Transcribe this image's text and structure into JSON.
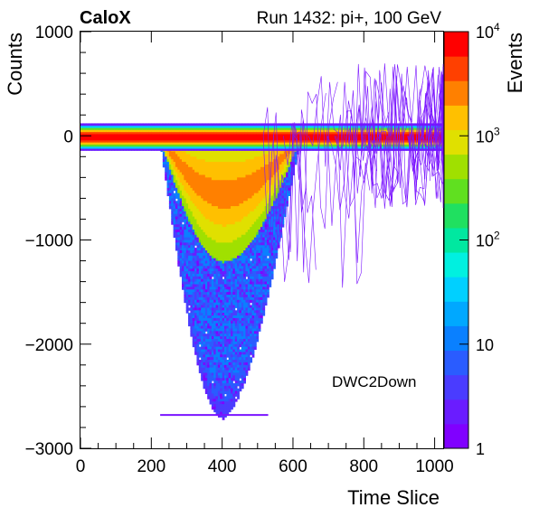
{
  "chart_data": {
    "type": "heatmap",
    "title_left": "CaloX",
    "title_right": "Run 1432: pi+, 100 GeV",
    "xlabel": "Time Slice",
    "ylabel": "Counts",
    "zlabel": "Events",
    "legend_text": "DWC2Down",
    "xlim": [
      0,
      1024
    ],
    "ylim": [
      -3000,
      1000
    ],
    "zscale": "log",
    "zlim": [
      1,
      10000
    ],
    "x_ticks": [
      {
        "value": 0,
        "label": "0"
      },
      {
        "value": 200,
        "label": "200"
      },
      {
        "value": 400,
        "label": "400"
      },
      {
        "value": 600,
        "label": "600"
      },
      {
        "value": 800,
        "label": "800"
      },
      {
        "value": 1000,
        "label": "1000"
      }
    ],
    "y_ticks": [
      {
        "value": 1000,
        "label": "1000"
      },
      {
        "value": 0,
        "label": "0"
      },
      {
        "value": -1000,
        "label": "−1000"
      },
      {
        "value": -2000,
        "label": "−2000"
      },
      {
        "value": -3000,
        "label": "−3000"
      }
    ],
    "z_ticks": [
      {
        "value": 1,
        "label": "1"
      },
      {
        "value": 10,
        "label": "10"
      },
      {
        "value": 100,
        "label": "10",
        "sup": "2"
      },
      {
        "value": 1000,
        "label": "10",
        "sup": "3"
      },
      {
        "value": 10000,
        "label": "10",
        "sup": "4"
      }
    ],
    "baseline": {
      "x_range": [
        0,
        1024
      ],
      "y": 0,
      "spread": 120,
      "peak_events": 10000
    },
    "pulse": {
      "x_start": 220,
      "x_min": 400,
      "x_end": 560,
      "depth_median": -1000,
      "depth_max": -2700
    },
    "grid": false,
    "palette": [
      "#8000ff",
      "#6a1cff",
      "#4a3cff",
      "#2a5cff",
      "#0a80ff",
      "#00a8ff",
      "#00d0ff",
      "#00f0e0",
      "#00e8a0",
      "#20e060",
      "#60e020",
      "#a0e000",
      "#e0e000",
      "#ffc000",
      "#ff8000",
      "#ff4000",
      "#ff0000"
    ]
  }
}
